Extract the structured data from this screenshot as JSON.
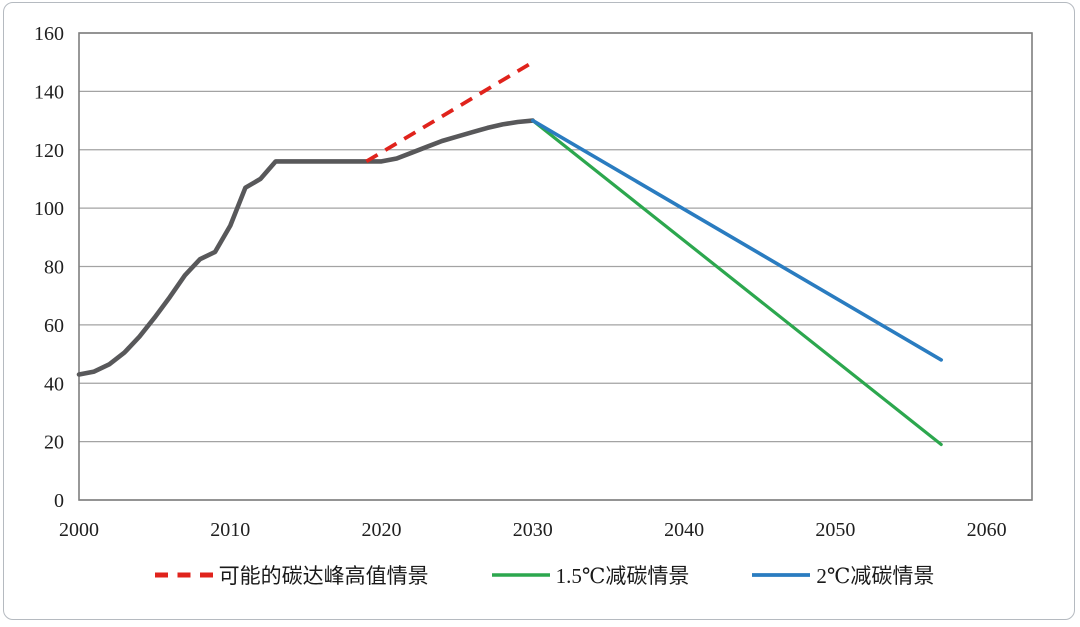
{
  "chart_data": {
    "type": "line",
    "title": "",
    "xlabel": "",
    "ylabel": "",
    "xlim": [
      2000,
      2063
    ],
    "ylim": [
      0,
      160
    ],
    "x_ticks": [
      2000,
      2010,
      2020,
      2030,
      2040,
      2050,
      2060
    ],
    "y_ticks": [
      0,
      20,
      40,
      60,
      80,
      100,
      120,
      140,
      160
    ],
    "grid": "horizontal",
    "legend_position": "bottom",
    "axis_color": "#7f7f7f",
    "gridline_color": "#a3a3a3",
    "tick_label_color": "#1f1f1f",
    "series": [
      {
        "id": "historical-emissions",
        "color": "#58585a",
        "width": 4.6,
        "dashed": false,
        "points": [
          [
            2000,
            43
          ],
          [
            2001,
            44
          ],
          [
            2002,
            46.5
          ],
          [
            2003,
            50.5
          ],
          [
            2004,
            56
          ],
          [
            2005,
            62.5
          ],
          [
            2006,
            69.5
          ],
          [
            2007,
            77
          ],
          [
            2008,
            82.5
          ],
          [
            2009,
            85
          ],
          [
            2010,
            94
          ],
          [
            2011,
            107
          ],
          [
            2012,
            110
          ],
          [
            2013,
            116
          ],
          [
            2014,
            116
          ],
          [
            2015,
            116
          ],
          [
            2016,
            116
          ],
          [
            2017,
            116
          ],
          [
            2018,
            116
          ],
          [
            2019,
            116
          ],
          [
            2020,
            116
          ],
          [
            2021,
            117
          ],
          [
            2022,
            119
          ],
          [
            2023,
            121
          ],
          [
            2024,
            123
          ],
          [
            2025,
            124.5
          ],
          [
            2026,
            126
          ],
          [
            2027,
            127.5
          ],
          [
            2028,
            128.7
          ],
          [
            2029,
            129.5
          ],
          [
            2030,
            130
          ]
        ]
      },
      {
        "id": "peak-high-scenario",
        "color": "#e0231c",
        "width": 3.8,
        "dashed": true,
        "points": [
          [
            2019,
            116
          ],
          [
            2030,
            150
          ]
        ]
      },
      {
        "id": "scenario-1-5c",
        "color": "#2ca74e",
        "width": 3.2,
        "dashed": false,
        "points": [
          [
            2030,
            130
          ],
          [
            2057,
            19
          ]
        ]
      },
      {
        "id": "scenario-2c",
        "color": "#2a7cc0",
        "width": 3.6,
        "dashed": false,
        "points": [
          [
            2030,
            130
          ],
          [
            2057,
            48
          ]
        ]
      }
    ]
  },
  "legend": {
    "items": [
      {
        "label": "可能的碳达峰高值情景",
        "series": "peak-high-scenario",
        "color": "#e0231c",
        "dashed": true
      },
      {
        "label": "1.5℃减碳情景",
        "series": "scenario-1-5c",
        "color": "#2ca74e",
        "dashed": false
      },
      {
        "label": "2℃减碳情景",
        "series": "scenario-2c",
        "color": "#2a7cc0",
        "dashed": false
      }
    ]
  }
}
